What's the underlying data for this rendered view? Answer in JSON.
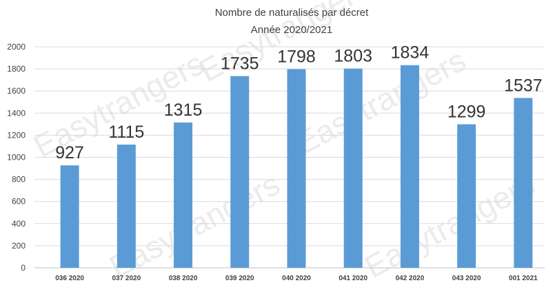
{
  "chart_data": {
    "type": "bar",
    "title": "Nombre de naturalisés par décret",
    "subtitle": "Année 2020/2021",
    "categories": [
      "036 2020",
      "037 2020",
      "038 2020",
      "039 2020",
      "040 2020",
      "041 2020",
      "042 2020",
      "043 2020",
      "001 2021"
    ],
    "values": [
      927,
      1115,
      1315,
      1735,
      1798,
      1803,
      1834,
      1299,
      1537
    ],
    "ylim": [
      0,
      2000
    ],
    "yticks": [
      0,
      200,
      400,
      600,
      800,
      1000,
      1200,
      1400,
      1600,
      1800,
      2000
    ],
    "grid": true,
    "legend": "none",
    "xlabel": "",
    "ylabel": ""
  },
  "watermark": "Easytrangers",
  "colors": {
    "bar": "#5b9bd5",
    "grid": "#d9d9d9",
    "text": "#404040",
    "watermark": "#dcdcdc",
    "watermark_accent": "#f5e9b8"
  }
}
